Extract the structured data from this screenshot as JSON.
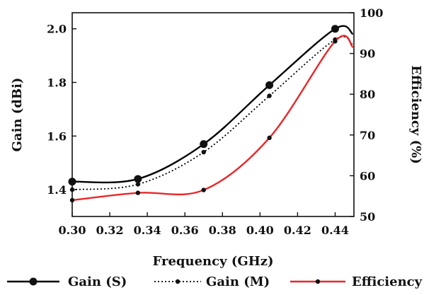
{
  "chart_data": {
    "type": "line",
    "title": "",
    "xlabel": "Frequency (GHz)",
    "ylabel_left": "Gain (dBi)",
    "ylabel_right": "Efficiency (%)",
    "xlim": [
      0.3,
      0.45
    ],
    "ylim_left": [
      1.3,
      2.06
    ],
    "ylim_right": [
      50,
      100
    ],
    "x_ticks": [
      "0.30",
      "0.32",
      "0.34",
      "0.36",
      "0.38",
      "0.40",
      "0.42",
      "0.44"
    ],
    "y_left_ticks": [
      "1.4",
      "1.6",
      "1.8",
      "2.0"
    ],
    "y_right_ticks": [
      "50",
      "60",
      "70",
      "80",
      "90",
      "100"
    ],
    "grid": false,
    "legend_position": "bottom",
    "series": [
      {
        "name": "Gain (S)",
        "axis": "left",
        "color": "#000000",
        "line_style": "solid",
        "marker": "large-dot",
        "x": [
          0.3,
          0.335,
          0.37,
          0.405,
          0.44
        ],
        "values": [
          1.43,
          1.44,
          1.57,
          1.79,
          2.0
        ]
      },
      {
        "name": "Gain (M)",
        "axis": "left",
        "color": "#000000",
        "line_style": "dotted",
        "marker": "small-dot",
        "x": [
          0.3,
          0.335,
          0.37,
          0.405,
          0.44
        ],
        "values": [
          1.4,
          1.42,
          1.54,
          1.75,
          1.96
        ]
      },
      {
        "name": "Efficiency",
        "axis": "right",
        "color": "#e8272a",
        "line_style": "solid",
        "marker": "small-dot",
        "x": [
          0.3,
          0.335,
          0.37,
          0.405,
          0.44
        ],
        "values": [
          54,
          55.8,
          56.5,
          69.3,
          93
        ]
      }
    ]
  }
}
